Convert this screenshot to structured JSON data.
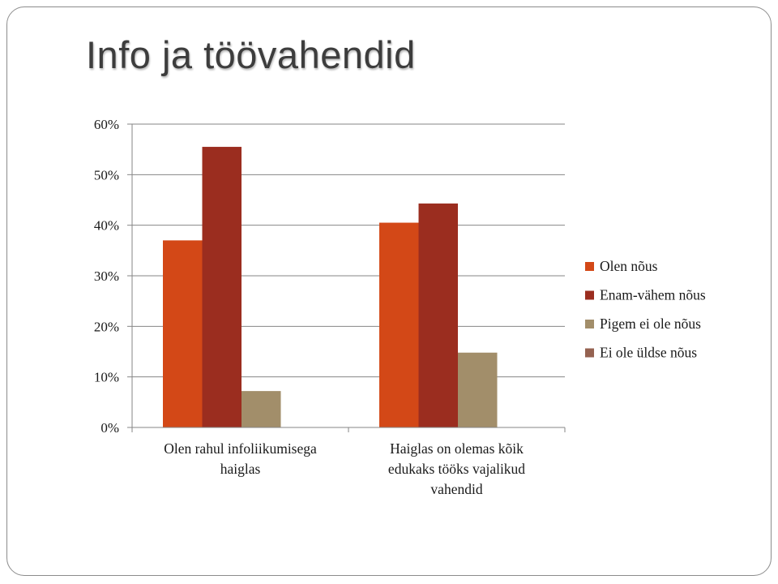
{
  "slide": {
    "title": "Info ja töövahendid"
  },
  "chart_data": {
    "type": "bar",
    "categories": [
      [
        "Olen rahul infoliikumisega",
        "haiglas"
      ],
      [
        "Haiglas on olemas kõik",
        "edukaks tööks vajalikud",
        "vahendid"
      ]
    ],
    "series": [
      {
        "name": "Olen nõus",
        "color": "#d34817",
        "values": [
          0.37,
          0.405
        ]
      },
      {
        "name": "Enam-vähem nõus",
        "color": "#9b2d1f",
        "values": [
          0.555,
          0.443
        ]
      },
      {
        "name": "Pigem ei ole nõus",
        "color": "#a28e6a",
        "values": [
          0.072,
          0.148
        ]
      },
      {
        "name": "Ei ole üldse nõus",
        "color": "#956251",
        "values": [
          0,
          0
        ]
      }
    ],
    "ylim": [
      0,
      0.6
    ],
    "yticks": [
      {
        "value": 0,
        "label": "0%"
      },
      {
        "value": 0.1,
        "label": "10%"
      },
      {
        "value": 0.2,
        "label": "20%"
      },
      {
        "value": 0.3,
        "label": "30%"
      },
      {
        "value": 0.4,
        "label": "40%"
      },
      {
        "value": 0.5,
        "label": "50%"
      },
      {
        "value": 0.6,
        "label": "60%"
      }
    ],
    "grid": true,
    "legend": "right"
  }
}
